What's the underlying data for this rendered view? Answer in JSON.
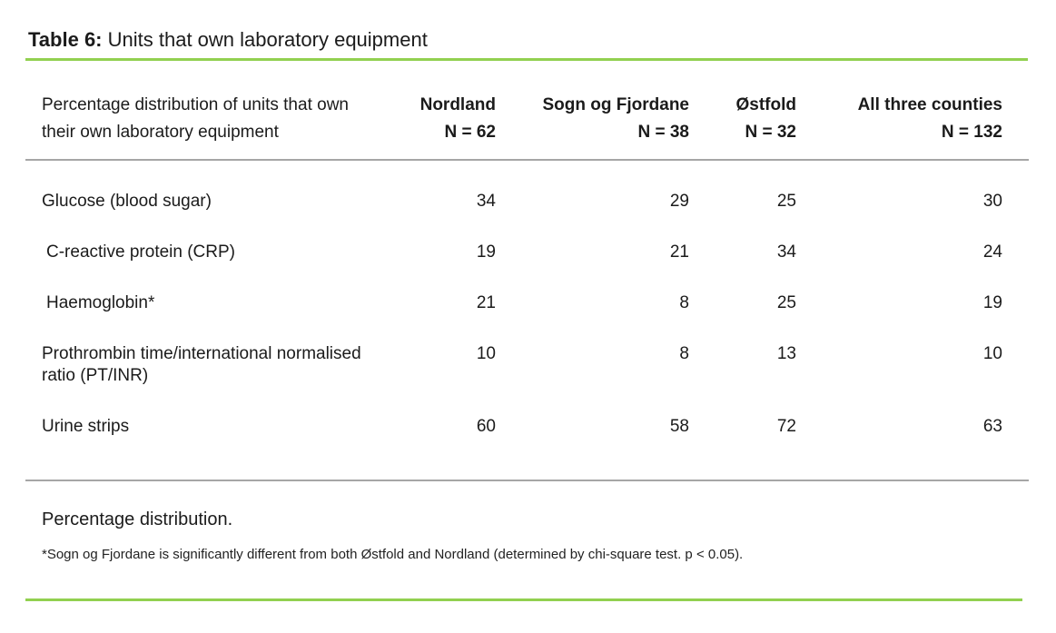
{
  "title": {
    "label": "Table 6:",
    "text": " Units that own laboratory equipment"
  },
  "colors": {
    "accent_green": "#92d050",
    "rule_gray": "#a6a6a6"
  },
  "table": {
    "header": {
      "row_label": "Percentage distribution of units that own their own laboratory equipment",
      "columns": [
        {
          "name": "Nordland",
          "n": "N = 62"
        },
        {
          "name": "Sogn og Fjordane",
          "n": "N = 38"
        },
        {
          "name": "Østfold",
          "n": "N = 32"
        },
        {
          "name": "All three counties",
          "n": "N = 132"
        }
      ]
    },
    "rows": [
      {
        "label": "Glucose (blood sugar)",
        "values": [
          34,
          29,
          25,
          30
        ]
      },
      {
        "label": "C-reactive protein (CRP)",
        "values": [
          19,
          21,
          34,
          24
        ]
      },
      {
        "label": "Haemoglobin*",
        "values": [
          21,
          8,
          25,
          19
        ]
      },
      {
        "label": "Prothrombin time/international normalised ratio (PT/INR)",
        "values": [
          10,
          8,
          13,
          10
        ]
      },
      {
        "label": "Urine strips",
        "values": [
          60,
          58,
          72,
          63
        ]
      }
    ]
  },
  "footer": {
    "note": "Percentage distribution.",
    "footnote": "*Sogn og Fjordane is significantly different from both Østfold and Nordland (determined by chi-square test. p < 0.05)."
  }
}
